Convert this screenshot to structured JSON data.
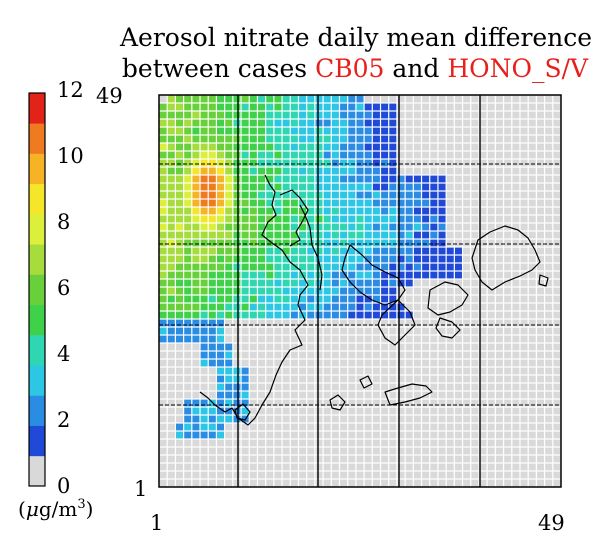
{
  "title": {
    "line1": "Aerosol nitrate daily mean difference",
    "line2_prefix": "between cases ",
    "case_a": "CB05",
    "conjunction": " and ",
    "case_b": "HONO_S/V"
  },
  "colorbar": {
    "ticks": [
      "12",
      "10",
      "8",
      "6",
      "4",
      "2",
      "0"
    ],
    "unit_prefix": "(",
    "unit_mu": "μ",
    "unit_body": "g/m",
    "unit_exp": "3",
    "unit_suffix": ")",
    "colors": [
      "#d9d9d9",
      "#1f49d6",
      "#2a8de3",
      "#2dc7e6",
      "#2ed7b2",
      "#3fd14a",
      "#68d13a",
      "#a6dc3c",
      "#dcef3b",
      "#f5e629",
      "#f6b326",
      "#f07a20",
      "#e2231a"
    ]
  },
  "axes": {
    "x_min_label": "1",
    "x_max_label": "49",
    "y_min_label": "1",
    "y_max_label": "49"
  },
  "highlight_color": "#e8201c"
}
